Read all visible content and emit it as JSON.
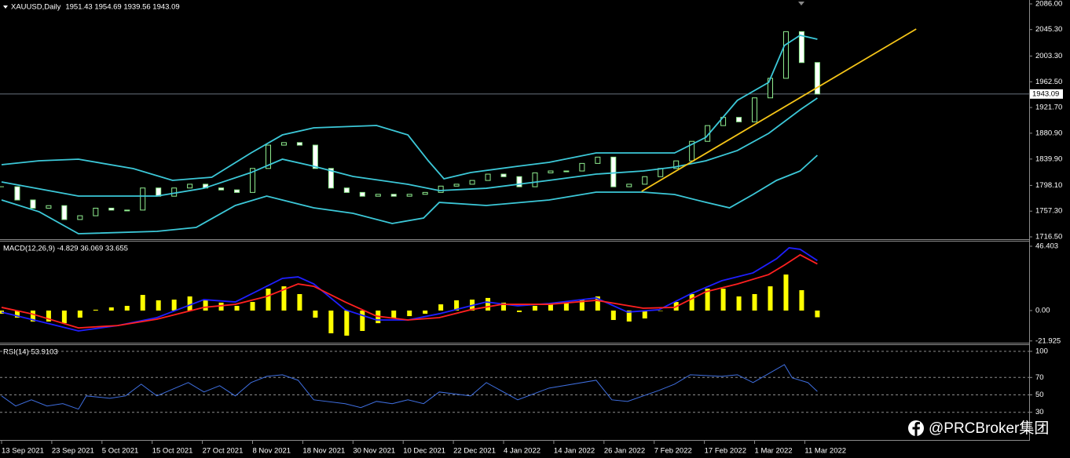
{
  "chart_data": [
    {
      "type": "candlestick",
      "title": "XAUUSD,Daily",
      "subtitle": "1951.43 1954.69 1939.56 1943.09",
      "x": [
        0,
        1,
        2,
        3,
        4,
        5,
        6,
        7,
        8,
        9,
        10,
        11,
        12,
        13,
        14,
        15,
        16,
        17,
        18,
        19,
        20,
        21,
        22,
        23,
        24,
        25,
        26,
        27,
        28,
        29,
        30,
        31,
        32,
        33,
        34,
        35,
        36,
        37,
        38,
        39,
        40,
        41,
        42,
        43,
        44,
        45,
        46,
        47,
        48,
        49,
        50,
        51,
        52
      ],
      "close": [
        1796,
        1775,
        1762,
        1766,
        1744,
        1750,
        1762,
        1759,
        1759,
        1794,
        1781,
        1794,
        1800,
        1794,
        1791,
        1787,
        1825,
        1862,
        1866,
        1862,
        1825,
        1794,
        1787,
        1781,
        1784,
        1781,
        1784,
        1787,
        1797,
        1800,
        1806,
        1816,
        1812,
        1796,
        1818,
        1821,
        1821,
        1833,
        1843,
        1796,
        1800,
        1812,
        1825,
        1837,
        1868,
        1893,
        1906,
        1899,
        1937,
        1968,
        2042,
        1993,
        1943.09
      ],
      "up_color": "#90ee90",
      "down_color": "#ffffff",
      "series": [
        {
          "type": "line",
          "color": "#3cc8d8",
          "x": [
            0,
            2.4,
            4.9,
            8.4,
            10.9,
            13.4,
            15.9,
            17.9,
            19.9,
            23.9,
            25.9,
            27.2,
            28.2,
            29.9,
            32.9,
            34.9,
            37.9,
            42.9,
            44.9,
            46.9,
            48.9,
            49.9,
            50.9,
            52
          ],
          "values": [
            1831.0,
            1837.2,
            1839.7,
            1824.7,
            1806.1,
            1811.1,
            1849.6,
            1878.2,
            1889.4,
            1893.2,
            1878.2,
            1837.2,
            1808.6,
            1818.5,
            1828.5,
            1834.7,
            1849.6,
            1849.6,
            1874.5,
            1933.0,
            1961.6,
            2020.0,
            2036.2,
            2030.0
          ]
        },
        {
          "type": "line",
          "color": "#3cc8d8",
          "x": [
            0,
            4.9,
            9.9,
            12.9,
            15.9,
            17.9,
            19.9,
            22.4,
            25.9,
            27.9,
            30.9,
            34.9,
            37.9,
            40.9,
            42.9,
            44.9,
            46.9,
            48.9,
            50.9,
            52
          ],
          "values": [
            1803.6,
            1781.2,
            1781.2,
            1793.6,
            1818.5,
            1839.7,
            1828.5,
            1812.3,
            1799.9,
            1789.9,
            1793.6,
            1806.1,
            1816.0,
            1821.0,
            1827.2,
            1837.2,
            1853.4,
            1880.7,
            1918.0,
            1936.7
          ]
        },
        {
          "type": "line",
          "color": "#3cc8d8",
          "x": [
            0,
            2.4,
            4.9,
            9.9,
            12.4,
            14.9,
            16.9,
            19.9,
            22.4,
            24.9,
            26.9,
            27.9,
            30.9,
            34.9,
            37.9,
            40.9,
            42.9,
            44.9,
            46.4,
            47.9,
            49.4,
            50.9,
            52
          ],
          "values": [
            1775.0,
            1756.3,
            1721.5,
            1725.2,
            1731.4,
            1766.3,
            1781.2,
            1762.5,
            1753.8,
            1737.7,
            1746.4,
            1771.2,
            1766.3,
            1775.0,
            1787.4,
            1787.4,
            1783.7,
            1771.2,
            1762.5,
            1783.7,
            1806.1,
            1821.0,
            1845.9
          ]
        },
        {
          "type": "line",
          "color": "#f5c518",
          "x": [
            40.8,
            58.3
          ],
          "values": [
            1788.7,
            2046.2
          ]
        }
      ],
      "last_price": 1943.09,
      "xlim": [
        0,
        65.5
      ],
      "ylim": [
        1712.8,
        2092.2
      ],
      "yticks": [
        {
          "value": 2086,
          "label": "2086.00"
        },
        {
          "value": 2045.3,
          "label": "2045.30"
        },
        {
          "value": 2003.3,
          "label": "2003.30"
        },
        {
          "value": 1962.5,
          "label": "1962.50"
        },
        {
          "value": 1921.7,
          "label": "1921.70"
        },
        {
          "value": 1880.9,
          "label": "1880.90"
        },
        {
          "value": 1839.9,
          "label": "1839.90"
        },
        {
          "value": 1798.1,
          "label": "1798.10"
        },
        {
          "value": 1757.3,
          "label": "1757.30"
        },
        {
          "value": 1716.5,
          "label": "1716.50"
        }
      ],
      "grid": false
    },
    {
      "type": "indicator",
      "title": "MACD(12,26,9) -4.829 36.069 33.655",
      "series": [
        {
          "type": "bar",
          "color": "#ffff00",
          "values": [
            -2.3,
            -5.1,
            -7.9,
            -7.9,
            -9.1,
            -5.1,
            0.6,
            2.3,
            3.4,
            11.3,
            7.4,
            7.9,
            10.2,
            7.9,
            5.7,
            3.4,
            6.2,
            15.8,
            17.5,
            11.9,
            -5.1,
            -16.4,
            -18.1,
            -14.7,
            -9.1,
            -5.7,
            -4.0,
            -2.3,
            4.5,
            7.4,
            7.9,
            9.1,
            5.7,
            -1.1,
            3.4,
            4.5,
            5.7,
            7.9,
            10.2,
            -6.8,
            -7.9,
            -5.7,
            0,
            6.2,
            11.9,
            15.8,
            15.8,
            10.2,
            11.9,
            17.5,
            26.0,
            14.7,
            -4.829
          ]
        },
        {
          "type": "line",
          "color": "#1f1fff",
          "x": [
            0,
            2.9,
            4.9,
            7.4,
            9.9,
            12.9,
            14.9,
            16.4,
            17.9,
            18.9,
            19.9,
            21.9,
            23.9,
            25.9,
            27.9,
            29.9,
            30.9,
            32.9,
            34.9,
            37.9,
            39.9,
            41.9,
            43.9,
            45.9,
            47.9,
            49.4,
            50.2,
            50.9,
            52
          ],
          "values": [
            -1.1,
            -9.1,
            -14.7,
            -10.8,
            -5.1,
            7.9,
            6.2,
            14.7,
            23.2,
            24.3,
            19.2,
            0.6,
            -6.8,
            -6.8,
            -2.3,
            3.4,
            6.2,
            3.4,
            5.1,
            9.1,
            -1.1,
            0.6,
            11.9,
            21.5,
            27.2,
            37.4,
            45.3,
            44.2,
            36.069
          ]
        },
        {
          "type": "line",
          "color": "#ff2020",
          "x": [
            0,
            1.9,
            4.9,
            7.4,
            9.9,
            12.9,
            14.9,
            16.9,
            18.9,
            19.9,
            21.9,
            23.9,
            25.9,
            27.9,
            29.9,
            31.9,
            34.9,
            37.9,
            40.9,
            42.9,
            44.9,
            46.9,
            48.9,
            49.9,
            50.9,
            52
          ],
          "values": [
            2.3,
            -2.3,
            -12.5,
            -10.8,
            -6.2,
            2.3,
            4.5,
            10.2,
            19.2,
            17.5,
            6.2,
            -4.0,
            -6.8,
            -5.1,
            0.6,
            4.5,
            4.5,
            7.4,
            1.7,
            2.3,
            13.6,
            19.2,
            26.0,
            32.8,
            40.2,
            33.655
          ]
        }
      ],
      "xlim": [
        0,
        65.5
      ],
      "ylim": [
        -23.2,
        49.8
      ],
      "yticks": [
        46.403,
        {
          "value": 0,
          "label": "0.00"
        },
        -21.925
      ],
      "grid": false
    },
    {
      "type": "indicator",
      "title": "RSI(14) 53.9103",
      "series": [
        {
          "type": "line",
          "color": "#3f6fe0",
          "x": [
            0,
            0.9,
            1.9,
            2.9,
            3.9,
            4.9,
            5.4,
            6.9,
            7.9,
            8.9,
            9.9,
            11.9,
            12.9,
            13.9,
            14.9,
            15.9,
            16.9,
            17.9,
            18.9,
            19.9,
            21.9,
            22.9,
            23.9,
            24.9,
            25.9,
            26.9,
            27.9,
            29.9,
            30.9,
            32.9,
            34.9,
            37.9,
            38.9,
            39.9,
            41.9,
            42.9,
            43.9,
            45.9,
            46.9,
            47.9,
            49.9,
            50.4,
            51.4,
            52
          ],
          "values": [
            48.8,
            37.2,
            44.3,
            37.2,
            40,
            33.6,
            48.8,
            46.1,
            48.8,
            62.3,
            48.8,
            64.1,
            53.3,
            60.5,
            48.8,
            64.1,
            71.3,
            73.1,
            66.8,
            44.3,
            39.9,
            35.4,
            42.5,
            39.9,
            44.3,
            39.9,
            53.3,
            48.8,
            64.1,
            44.3,
            57.8,
            66.8,
            44.3,
            42.5,
            55.1,
            62.3,
            73.1,
            71.3,
            73.1,
            64.1,
            84.7,
            69.5,
            64.1,
            53.9103
          ]
        }
      ],
      "xlim": [
        0,
        65.5
      ],
      "ylim": [
        0,
        107.2
      ],
      "yticks": [
        100,
        70,
        50,
        30
      ],
      "grid": true,
      "xticks": [
        {
          "value": 0,
          "label": "13 Sep 2021"
        },
        {
          "value": 3.2,
          "label": "23 Sep 2021"
        },
        {
          "value": 6.4,
          "label": "5 Oct 2021"
        },
        {
          "value": 9.6,
          "label": "15 Oct 2021"
        },
        {
          "value": 12.8,
          "label": "27 Oct 2021"
        },
        {
          "value": 16,
          "label": "8 Nov 2021"
        },
        {
          "value": 19.2,
          "label": "18 Nov 2021"
        },
        {
          "value": 22.4,
          "label": "30 Nov 2021"
        },
        {
          "value": 25.6,
          "label": "10 Dec 2021"
        },
        {
          "value": 28.8,
          "label": "22 Dec 2021"
        },
        {
          "value": 32,
          "label": "4 Jan 2022"
        },
        {
          "value": 35.2,
          "label": "14 Jan 2022"
        },
        {
          "value": 38.4,
          "label": "26 Jan 2022"
        },
        {
          "value": 41.6,
          "label": "7 Feb 2022"
        },
        {
          "value": 44.8,
          "label": "17 Feb 2022"
        },
        {
          "value": 48,
          "label": "1 Mar 2022"
        },
        {
          "value": 51.2,
          "label": "11 Mar 2022"
        }
      ]
    }
  ],
  "watermark": "@PRCBroker集团"
}
